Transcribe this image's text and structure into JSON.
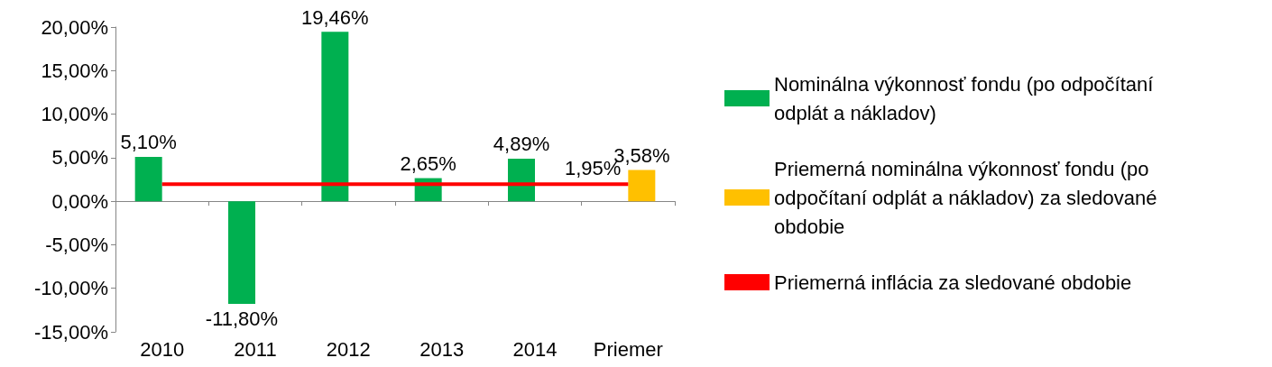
{
  "chart_data": {
    "type": "bar",
    "categories": [
      "2010",
      "2011",
      "2012",
      "2013",
      "2014",
      "Priemer"
    ],
    "series": [
      {
        "name": "Nominálna výkonnosť fondu (po odpočítaní odplát a nákladov)",
        "color": "#00b050",
        "values": [
          5.1,
          -11.8,
          19.46,
          2.65,
          4.89,
          null
        ],
        "value_labels": [
          "5,10%",
          "-11,80%",
          "19,46%",
          "2,65%",
          "4,89%",
          null
        ]
      },
      {
        "name": "Priemerná nominálna výkonnosť fondu (po odpočítaní odplát a nákladov) za sledované obdobie",
        "color": "#ffc000",
        "values": [
          null,
          null,
          null,
          null,
          null,
          3.58
        ],
        "value_labels": [
          null,
          null,
          null,
          null,
          null,
          "3,58%"
        ]
      },
      {
        "name": "Priemerná inflácia za sledované obdobie",
        "type": "line",
        "color": "#ff0000",
        "values": [
          1.95,
          1.95,
          1.95,
          1.95,
          1.95,
          1.95
        ],
        "value_labels": [
          null,
          null,
          null,
          null,
          null,
          "1,95%"
        ]
      }
    ],
    "ylim": [
      -15,
      20
    ],
    "yticks": [
      {
        "value": -15,
        "label": "-15,00%"
      },
      {
        "value": -10,
        "label": "-10,00%"
      },
      {
        "value": -5,
        "label": "-5,00%"
      },
      {
        "value": 0,
        "label": "0,00%"
      },
      {
        "value": 5,
        "label": "5,00%"
      },
      {
        "value": 10,
        "label": "10,00%"
      },
      {
        "value": 15,
        "label": "15,00%"
      },
      {
        "value": 20,
        "label": "20,00%"
      }
    ],
    "legend": "right",
    "marker": "none"
  }
}
